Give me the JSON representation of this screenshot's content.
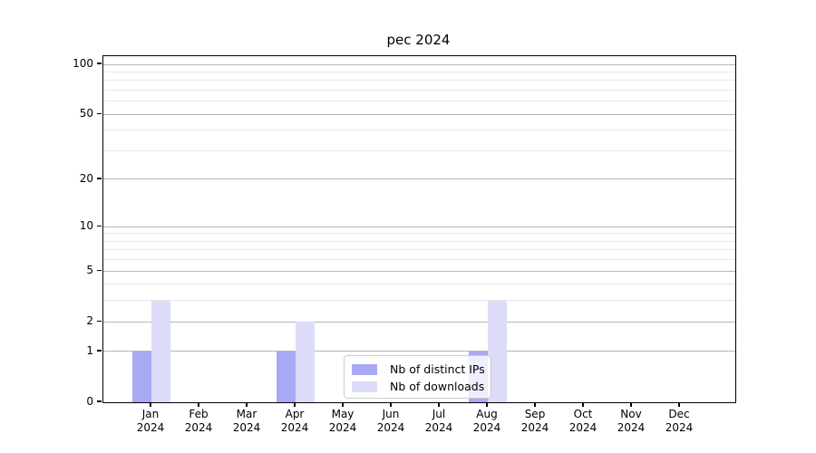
{
  "chart_data": {
    "type": "bar",
    "title": "pec 2024",
    "categories": [
      "Jan",
      "Feb",
      "Mar",
      "Apr",
      "May",
      "Jun",
      "Jul",
      "Aug",
      "Sep",
      "Oct",
      "Nov",
      "Dec"
    ],
    "category_year": "2024",
    "series": [
      {
        "name": "Nb of distinct IPs",
        "color": "#a9a9f3",
        "values": [
          1,
          0,
          0,
          1,
          0,
          0,
          0,
          1,
          0,
          0,
          0,
          0
        ]
      },
      {
        "name": "Nb of downloads",
        "color": "#dcdcf9",
        "values": [
          3,
          0,
          0,
          2,
          0,
          0,
          0,
          3,
          0,
          0,
          0,
          0
        ]
      }
    ],
    "yscale": "log1p",
    "ylim": [
      0,
      100
    ],
    "yticks_major": [
      0,
      1,
      2,
      5,
      10,
      20,
      50,
      100
    ],
    "yticks_minor": [
      3,
      4,
      6,
      7,
      8,
      9,
      30,
      40,
      60,
      70,
      80,
      90
    ],
    "grid": true,
    "legend_position": "lower-center",
    "colors": {
      "grid_major": "#b5b5b5",
      "grid_minor": "#e8e8e8",
      "spine": "#000000",
      "legend_border": "#cccccc"
    }
  }
}
